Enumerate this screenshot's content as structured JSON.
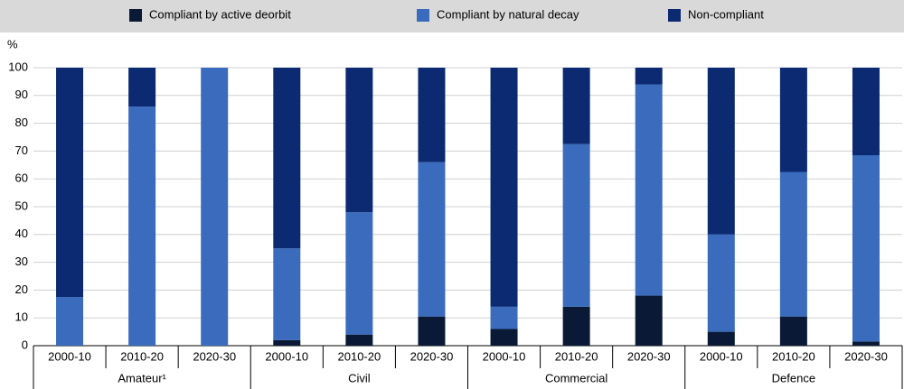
{
  "chart_data": {
    "type": "stacked-bar",
    "y_label": "%",
    "categories": [
      "2000-10",
      "2010-20",
      "2020-30",
      "2000-10",
      "2010-20",
      "2020-30",
      "2000-10",
      "2010-20",
      "2020-30",
      "2000-10",
      "2010-20",
      "2020-30"
    ],
    "groups": [
      "Amateur¹",
      "Civil",
      "Commercial",
      "Defence"
    ],
    "series": [
      {
        "name": "Compliant by active deorbit",
        "color": "#0a1a36",
        "values": [
          0,
          0,
          0,
          2,
          4,
          10.5,
          6,
          14,
          18,
          5,
          10.5,
          1.5
        ]
      },
      {
        "name": "Compliant by natural decay",
        "color": "#3a6bbd",
        "values": [
          17.5,
          86,
          100,
          33,
          44,
          55.5,
          8,
          58.5,
          76,
          35,
          52,
          67
        ]
      },
      {
        "name": "Non-compliant",
        "color": "#0c2a72",
        "values": [
          82.5,
          14,
          0,
          65,
          52,
          34,
          86,
          27.5,
          6,
          60,
          37.5,
          31.5
        ]
      }
    ],
    "ylim": [
      0,
      100
    ],
    "yticks": [
      0,
      10,
      20,
      30,
      40,
      50,
      60,
      70,
      80,
      90,
      100
    ],
    "grid": true
  }
}
